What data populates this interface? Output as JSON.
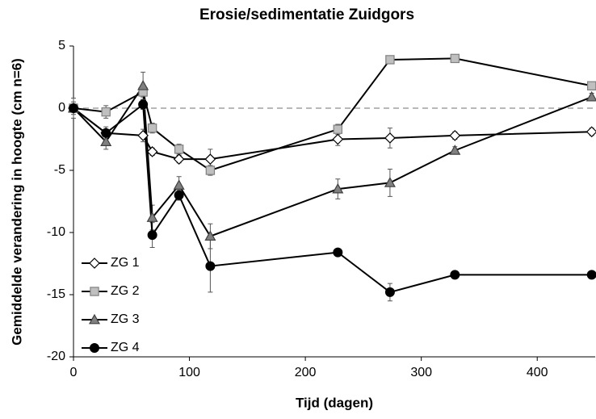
{
  "chart_data": {
    "type": "line",
    "title": "Erosie/sedimentatie Zuidgors",
    "xlabel": "Tijd (dagen)",
    "ylabel": "Gemiddelde verandering in hoogte (cm n=6)",
    "x": [
      0,
      28,
      60,
      68,
      91,
      118,
      228,
      273,
      329,
      447
    ],
    "series": [
      {
        "name": "ZG 1",
        "color": "#000000",
        "marker": "diamond",
        "marker_fill": "#ffffff",
        "marker_stroke": "#000000",
        "values": [
          0,
          -2.0,
          -2.2,
          -3.5,
          -4.1,
          -4.1,
          -2.5,
          -2.4,
          -2.2,
          -1.9
        ],
        "errors": [
          0.3,
          0.3,
          0.5,
          0.3,
          0.3,
          0.8,
          0.5,
          0.8,
          0.3,
          0.3
        ]
      },
      {
        "name": "ZG 2",
        "color": "#000000",
        "marker": "square",
        "marker_fill": "#bfbfbf",
        "marker_stroke": "#808080",
        "values": [
          0,
          -0.3,
          1.3,
          -1.6,
          -3.3,
          -5.0,
          -1.7,
          3.9,
          4.0,
          1.8
        ],
        "errors": [
          0.3,
          0.5,
          0.4,
          0.4,
          0.4,
          0.4,
          0.4,
          0.3,
          0.3,
          0.3
        ]
      },
      {
        "name": "ZG 3",
        "color": "#000000",
        "marker": "triangle",
        "marker_fill": "#808080",
        "marker_stroke": "#404040",
        "values": [
          0,
          -2.7,
          1.8,
          -8.8,
          -6.2,
          -10.3,
          -6.5,
          -6.0,
          -3.4,
          0.9
        ],
        "errors": [
          0.5,
          0.6,
          1.1,
          1.0,
          0.7,
          1.0,
          0.8,
          1.1,
          0.3,
          0.3
        ]
      },
      {
        "name": "ZG 4",
        "color": "#000000",
        "marker": "circle",
        "marker_fill": "#000000",
        "marker_stroke": "#000000",
        "values": [
          0,
          -2.0,
          0.3,
          -10.2,
          -7.0,
          -12.7,
          -11.6,
          -14.8,
          -13.4,
          -13.4
        ],
        "errors": [
          0.8,
          0.5,
          0.4,
          1.0,
          0.4,
          2.1,
          0.3,
          0.7,
          0.3,
          0.3
        ]
      }
    ],
    "xlim": [
      0,
      450
    ],
    "xticks": [
      0,
      100,
      200,
      300,
      400
    ],
    "ylim": [
      -20,
      5
    ],
    "yticks": [
      -20,
      -15,
      -10,
      -5,
      0,
      5
    ],
    "reference_line": 0,
    "legend": "lower left"
  }
}
